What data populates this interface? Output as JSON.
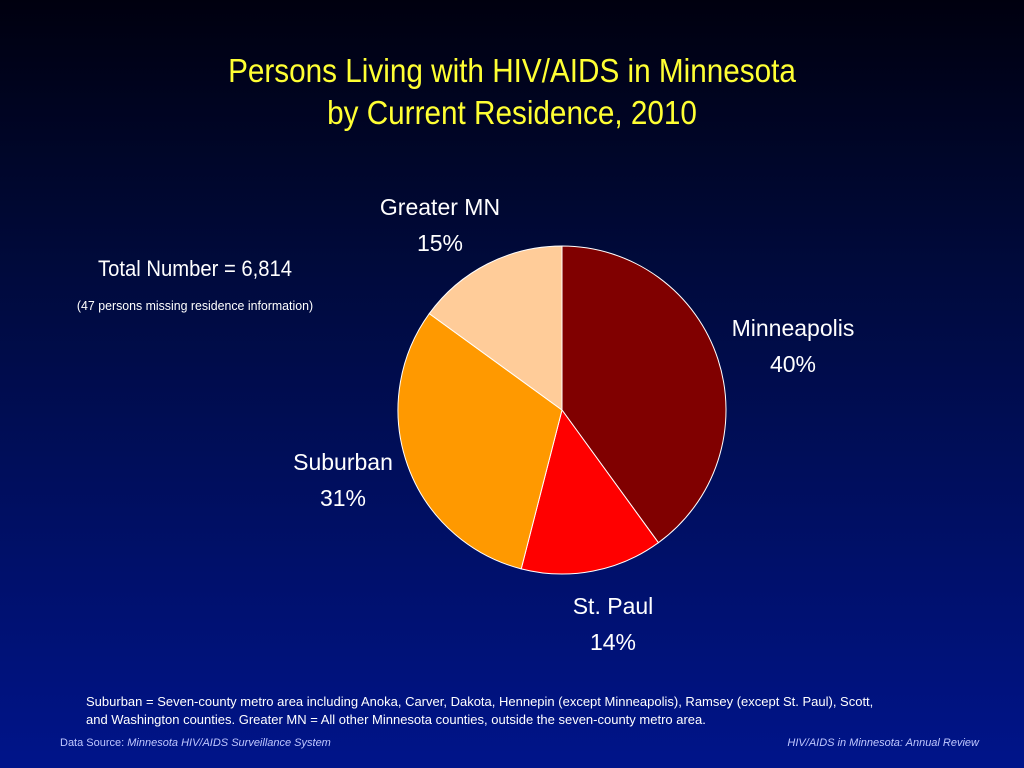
{
  "title": {
    "line1": "Persons Living with HIV/AIDS in Minnesota",
    "line2": "by Current Residence, 2010"
  },
  "summary": {
    "total": "Total Number = 6,814",
    "missing": "(47 persons missing residence information)"
  },
  "chart_data": {
    "type": "pie",
    "title": "Persons Living with HIV/AIDS in Minnesota by Current Residence, 2010",
    "start_angle_deg": 0,
    "direction": "clockwise",
    "slices": [
      {
        "label": "Minneapolis",
        "value": 40,
        "display": "40%",
        "color": "#800000"
      },
      {
        "label": "St. Paul",
        "value": 14,
        "display": "14%",
        "color": "#ff0000"
      },
      {
        "label": "Suburban",
        "value": 31,
        "display": "31%",
        "color": "#ff9900"
      },
      {
        "label": "Greater MN",
        "value": 15,
        "display": "15%",
        "color": "#ffcc99"
      }
    ]
  },
  "footnote": {
    "line1": "Suburban = Seven-county metro area including Anoka, Carver, Dakota, Hennepin (except Minneapolis), Ramsey (except St. Paul), Scott,",
    "line2": "and Washington counties.  Greater MN = All other Minnesota counties, outside the seven-county metro area."
  },
  "source": {
    "prefix": "Data Source:",
    "name": "Minnesota HIV/AIDS Surveillance System"
  },
  "review": "HIV/AIDS in Minnesota: Annual Review"
}
